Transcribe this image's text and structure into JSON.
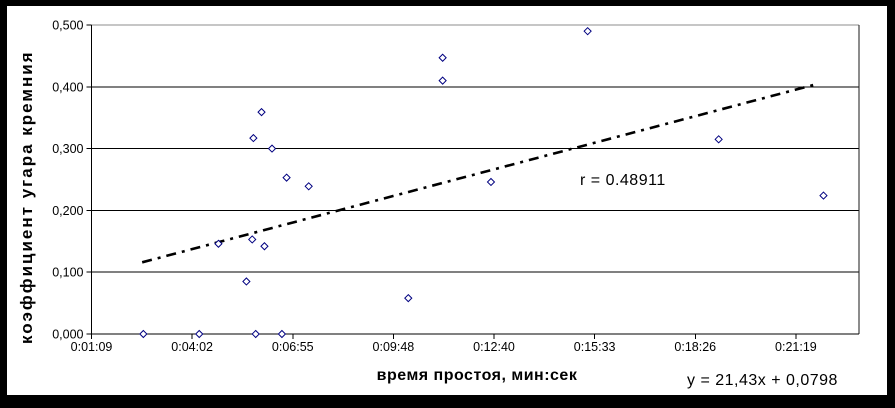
{
  "chart_data": {
    "type": "scatter",
    "title": "",
    "x_axis": {
      "label": "время простоя, мин:сек",
      "tick_labels": [
        "0:01:09",
        "0:04:02",
        "0:06:55",
        "0:09:48",
        "0:12:40",
        "0:15:33",
        "0:18:26",
        "0:21:19"
      ],
      "tick_seconds": [
        69,
        241.8,
        414.6,
        587.4,
        760.2,
        933.0,
        1105.8,
        1278.6
      ],
      "range_seconds": [
        69,
        1387
      ]
    },
    "y_axis": {
      "label": "коэффициент угара кремния",
      "tick_labels": [
        "0,000",
        "0,100",
        "0,200",
        "0,300",
        "0,400",
        "0,500"
      ],
      "tick_values": [
        0,
        0.1,
        0.2,
        0.3,
        0.4,
        0.5
      ],
      "range": [
        0,
        0.5
      ]
    },
    "points": [
      {
        "time": "0:02:38",
        "value": 0.0
      },
      {
        "time": "0:04:14",
        "value": 0.0
      },
      {
        "time": "0:05:51",
        "value": 0.0
      },
      {
        "time": "0:06:36",
        "value": 0.0
      },
      {
        "time": "0:04:47",
        "value": 0.146
      },
      {
        "time": "0:05:45",
        "value": 0.153
      },
      {
        "time": "0:06:06",
        "value": 0.142
      },
      {
        "time": "0:05:35",
        "value": 0.085
      },
      {
        "time": "0:06:01",
        "value": 0.359
      },
      {
        "time": "0:05:47",
        "value": 0.317
      },
      {
        "time": "0:06:19",
        "value": 0.3
      },
      {
        "time": "0:06:44",
        "value": 0.253
      },
      {
        "time": "0:07:22",
        "value": 0.239
      },
      {
        "time": "0:10:13",
        "value": 0.058
      },
      {
        "time": "0:11:12",
        "value": 0.447
      },
      {
        "time": "0:11:12",
        "value": 0.41
      },
      {
        "time": "0:12:35",
        "value": 0.246
      },
      {
        "time": "0:15:21",
        "value": 0.49
      },
      {
        "time": "0:19:06",
        "value": 0.315
      },
      {
        "time": "0:22:06",
        "value": 0.224
      }
    ],
    "trendline": {
      "style": "dash-dot",
      "start": {
        "time": "0:02:36",
        "value": 0.116
      },
      "end": {
        "time": "0:21:57",
        "value": 0.405
      }
    },
    "annotations": {
      "correlation": "r = 0.48911",
      "equation": "y = 21,43x + 0,0798"
    },
    "legend": "none",
    "grid": "horizontal",
    "colors": {
      "marker": "#000080",
      "trendline": "#000000",
      "gridline": "#000000",
      "plot_border_top": "#8c8c8c",
      "plot_border_right": "#1a1a1a",
      "axis": "#000000",
      "text": "#000000",
      "background": "#ffffff",
      "frame": "#000000"
    }
  }
}
